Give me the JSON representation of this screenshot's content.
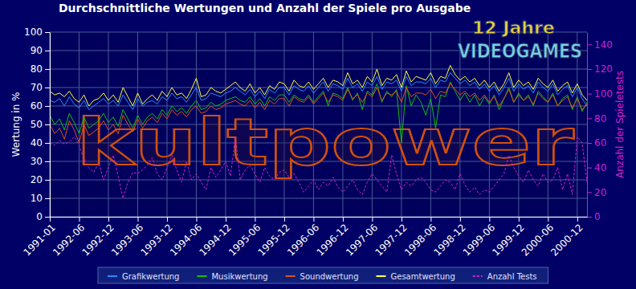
{
  "chart_data": {
    "type": "line",
    "title": "Durchschnittliche Wertungen und Anzahl der Spiele pro Ausgabe",
    "y_label": "Wertung in %",
    "y2_label": "Anzahl der Spieletests",
    "annotations": [
      "12 Jahre",
      "VIDEOGAMES",
      "kultpower"
    ],
    "categories": [
      "1991-01",
      null,
      null,
      null,
      null,
      null,
      "1992-06",
      null,
      null,
      null,
      null,
      null,
      "1992-12",
      null,
      null,
      null,
      null,
      null,
      "1993-06",
      null,
      null,
      null,
      null,
      null,
      "1993-12",
      null,
      null,
      null,
      null,
      null,
      "1994-06",
      null,
      null,
      null,
      null,
      null,
      "1994-12",
      null,
      null,
      null,
      null,
      null,
      "1995-06",
      null,
      null,
      null,
      null,
      null,
      "1995-12",
      null,
      null,
      null,
      null,
      null,
      "1996-06",
      null,
      null,
      null,
      null,
      null,
      "1996-12",
      null,
      null,
      null,
      null,
      null,
      "1997-06",
      null,
      null,
      null,
      null,
      null,
      "1997-12",
      null,
      null,
      null,
      null,
      null,
      "1998-06",
      null,
      null,
      null,
      null,
      null,
      "1998-12",
      null,
      null,
      null,
      null,
      null,
      "1999-06",
      null,
      null,
      null,
      null,
      null,
      "1999-12",
      null,
      null,
      null,
      null,
      null,
      "2000-06",
      null,
      null,
      null,
      null,
      null,
      "2000-12",
      null,
      null
    ],
    "ylim": [
      0,
      100
    ],
    "yticks": [
      0,
      10,
      20,
      30,
      40,
      50,
      60,
      70,
      80,
      90,
      100
    ],
    "y2lim": [
      0,
      150
    ],
    "y2ticks": [
      0,
      20,
      40,
      60,
      80,
      100,
      120,
      140
    ],
    "grid": true,
    "legend": "bottom",
    "series": [
      {
        "name": "Grafikwertung",
        "color": "#2a8cff",
        "values": [
          63,
          62,
          64,
          60,
          65,
          61,
          59,
          63,
          58,
          60,
          62,
          64,
          61,
          63,
          60,
          66,
          62,
          58,
          64,
          60,
          62,
          63,
          61,
          65,
          63,
          67,
          64,
          65,
          62,
          66,
          70,
          63,
          64,
          67,
          66,
          65,
          67,
          68,
          70,
          68,
          66,
          69,
          65,
          68,
          64,
          69,
          67,
          70,
          70,
          66,
          71,
          69,
          68,
          71,
          67,
          70,
          73,
          68,
          72,
          71,
          69,
          75,
          70,
          72,
          68,
          73,
          71,
          76,
          69,
          73,
          72,
          74,
          68,
          76,
          71,
          73,
          73,
          72,
          75,
          70,
          74,
          73,
          78,
          75,
          72,
          74,
          71,
          73,
          69,
          72,
          68,
          71,
          66,
          70,
          75,
          68,
          72,
          69,
          71,
          67,
          73,
          70,
          68,
          72,
          66,
          69,
          71,
          65,
          70,
          64,
          60
        ]
      },
      {
        "name": "Musikwertung",
        "color": "#10c010",
        "values": [
          55,
          50,
          53,
          47,
          56,
          51,
          45,
          54,
          48,
          50,
          52,
          56,
          51,
          54,
          49,
          58,
          53,
          48,
          55,
          50,
          54,
          56,
          53,
          58,
          55,
          60,
          57,
          59,
          56,
          60,
          63,
          58,
          59,
          62,
          60,
          61,
          63,
          64,
          65,
          63,
          62,
          65,
          61,
          64,
          60,
          65,
          63,
          66,
          66,
          62,
          66,
          64,
          63,
          66,
          62,
          65,
          68,
          60,
          67,
          66,
          64,
          70,
          63,
          67,
          58,
          68,
          66,
          72,
          62,
          68,
          65,
          69,
          40,
          71,
          60,
          66,
          62,
          55,
          64,
          48,
          66,
          65,
          73,
          68,
          63,
          67,
          62,
          66,
          60,
          65,
          61,
          66,
          58,
          64,
          70,
          62,
          67,
          63,
          66,
          60,
          68,
          65,
          62,
          67,
          60,
          64,
          66,
          58,
          65,
          57,
          62
        ]
      },
      {
        "name": "Soundwertung",
        "color": "#e0501a",
        "values": [
          50,
          45,
          48,
          42,
          52,
          47,
          40,
          50,
          44,
          46,
          48,
          52,
          47,
          50,
          45,
          55,
          50,
          46,
          53,
          48,
          52,
          54,
          51,
          56,
          53,
          58,
          55,
          57,
          54,
          58,
          60,
          56,
          57,
          60,
          58,
          59,
          61,
          62,
          63,
          61,
          60,
          63,
          59,
          62,
          58,
          63,
          61,
          64,
          64,
          60,
          65,
          63,
          62,
          65,
          61,
          64,
          67,
          62,
          66,
          65,
          63,
          69,
          64,
          66,
          62,
          67,
          65,
          70,
          63,
          67,
          66,
          68,
          62,
          70,
          65,
          67,
          67,
          66,
          69,
          64,
          68,
          67,
          72,
          69,
          66,
          68,
          65,
          67,
          63,
          66,
          62,
          65,
          60,
          64,
          69,
          62,
          66,
          63,
          65,
          61,
          67,
          64,
          62,
          66,
          60,
          63,
          65,
          59,
          64,
          58,
          61
        ]
      },
      {
        "name": "Gesamtwertung",
        "color": "#ffff40",
        "values": [
          68,
          66,
          67,
          65,
          68,
          64,
          62,
          66,
          60,
          63,
          64,
          67,
          63,
          66,
          62,
          70,
          65,
          60,
          67,
          61,
          64,
          66,
          63,
          68,
          65,
          70,
          66,
          67,
          64,
          69,
          75,
          65,
          66,
          70,
          68,
          67,
          69,
          71,
          73,
          70,
          68,
          72,
          67,
          70,
          66,
          71,
          69,
          73,
          72,
          68,
          74,
          71,
          70,
          73,
          69,
          72,
          75,
          70,
          74,
          73,
          71,
          78,
          72,
          74,
          70,
          76,
          73,
          80,
          71,
          75,
          74,
          77,
          70,
          79,
          73,
          76,
          75,
          74,
          78,
          72,
          76,
          75,
          82,
          77,
          74,
          76,
          73,
          75,
          71,
          74,
          70,
          73,
          68,
          72,
          78,
          70,
          74,
          71,
          73,
          69,
          75,
          72,
          70,
          74,
          68,
          71,
          73,
          67,
          72,
          66,
          63
        ]
      },
      {
        "name": "Anzahl Tests",
        "color": "#d020d0",
        "axis": "y2",
        "line_style": "dashed",
        "values": [
          60,
          58,
          62,
          59,
          61,
          65,
          58,
          47,
          40,
          36,
          44,
          30,
          40,
          50,
          33,
          15,
          28,
          36,
          35,
          38,
          42,
          48,
          35,
          30,
          40,
          50,
          38,
          28,
          45,
          30,
          35,
          28,
          22,
          40,
          32,
          38,
          45,
          33,
          65,
          30,
          38,
          42,
          35,
          28,
          40,
          33,
          30,
          36,
          38,
          32,
          35,
          28,
          20,
          25,
          30,
          22,
          28,
          25,
          32,
          24,
          20,
          25,
          30,
          22,
          18,
          28,
          35,
          30,
          25,
          20,
          50,
          35,
          22,
          28,
          25,
          30,
          32,
          28,
          22,
          20,
          25,
          30,
          28,
          22,
          35,
          26,
          20,
          24,
          18,
          22,
          20,
          25,
          30,
          35,
          50,
          40,
          33,
          28,
          38,
          30,
          25,
          35,
          28,
          30,
          40,
          22,
          35,
          18,
          65,
          60,
          28
        ]
      }
    ]
  }
}
